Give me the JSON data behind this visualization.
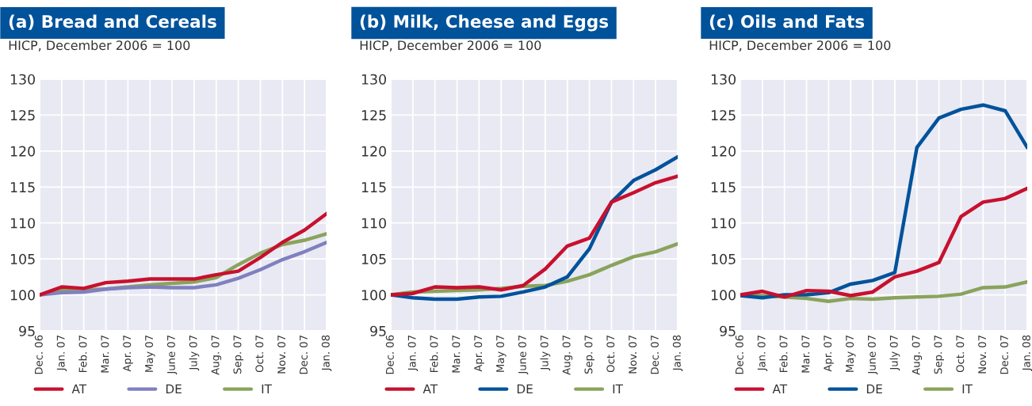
{
  "chart_data": [
    {
      "type": "line",
      "title": "(a) Bread and Cereals",
      "subtitle": "HICP, December 2006 = 100",
      "categories": [
        "Dec. 06",
        "Jan. 07",
        "Feb. 07",
        "Mar. 07",
        "Apr. 07",
        "May 07",
        "June 07",
        "July 07",
        "Aug. 07",
        "Sep. 07",
        "Oct. 07",
        "Nov. 07",
        "Dec. 07",
        "Jan. 08"
      ],
      "series": [
        {
          "name": "AT",
          "color": "#c8102e",
          "values": [
            100,
            101.1,
            100.9,
            101.7,
            101.9,
            102.2,
            102.2,
            102.2,
            102.8,
            103.3,
            105.2,
            107.3,
            109.0,
            111.3
          ]
        },
        {
          "name": "DE",
          "color": "#8080c0",
          "values": [
            100,
            100.3,
            100.4,
            100.8,
            101.0,
            101.1,
            101.0,
            101.0,
            101.4,
            102.3,
            103.5,
            104.9,
            106.0,
            107.3
          ]
        },
        {
          "name": "IT",
          "color": "#8aa35c",
          "values": [
            100,
            100.6,
            100.7,
            100.8,
            101.1,
            101.4,
            101.6,
            101.8,
            102.4,
            104.2,
            105.8,
            107.0,
            107.6,
            108.5
          ]
        }
      ],
      "ylim": [
        95,
        130
      ],
      "yticks": [
        95,
        100,
        105,
        110,
        115,
        120,
        125,
        130
      ],
      "grid": true,
      "legend": "bottom"
    },
    {
      "type": "line",
      "title": "(b) Milk, Cheese and Eggs",
      "subtitle": "HICP, December 2006 = 100",
      "categories": [
        "Dec. 06",
        "Jan. 07",
        "Feb. 07",
        "Mar. 07",
        "Apr. 07",
        "May 07",
        "June 07",
        "July 07",
        "Aug. 07",
        "Sep. 07",
        "Oct. 07",
        "Nov. 07",
        "Dec. 07",
        "Jan. 08"
      ],
      "series": [
        {
          "name": "AT",
          "color": "#c8102e",
          "values": [
            100,
            100.2,
            101.1,
            101.0,
            101.1,
            100.7,
            101.3,
            103.6,
            106.8,
            107.9,
            112.9,
            114.2,
            115.6,
            116.5
          ]
        },
        {
          "name": "DE",
          "color": "#00529b",
          "values": [
            100,
            99.6,
            99.4,
            99.4,
            99.7,
            99.8,
            100.4,
            101.1,
            102.5,
            106.4,
            112.9,
            115.9,
            117.4,
            119.2
          ]
        },
        {
          "name": "IT",
          "color": "#8aa35c",
          "values": [
            100,
            100.4,
            100.5,
            100.6,
            100.7,
            100.9,
            101.2,
            101.3,
            101.9,
            102.8,
            104.1,
            105.3,
            106.0,
            107.1
          ]
        }
      ],
      "ylim": [
        95,
        130
      ],
      "yticks": [
        95,
        100,
        105,
        110,
        115,
        120,
        125,
        130
      ],
      "grid": true,
      "legend": "bottom"
    },
    {
      "type": "line",
      "title": "(c) Oils and Fats",
      "subtitle": "HICP, December 2006 = 100",
      "categories": [
        "Dec. 06",
        "Jan. 07",
        "Feb. 07",
        "Mar. 07",
        "Apr. 07",
        "May 07",
        "June 07",
        "July 07",
        "Aug. 07",
        "Sep. 07",
        "Oct. 07",
        "Nov. 07",
        "Dec. 07",
        "Jan. 08"
      ],
      "series": [
        {
          "name": "AT",
          "color": "#c8102e",
          "values": [
            100,
            100.5,
            99.7,
            100.6,
            100.5,
            99.9,
            100.4,
            102.5,
            103.3,
            104.5,
            110.9,
            112.9,
            113.4,
            114.8
          ]
        },
        {
          "name": "DE",
          "color": "#00529b",
          "values": [
            99.9,
            99.6,
            100,
            100,
            100.3,
            101.5,
            102.0,
            103.1,
            120.5,
            124.6,
            125.8,
            126.4,
            125.6,
            120.5
          ]
        },
        {
          "name": "IT",
          "color": "#8aa35c",
          "values": [
            100,
            99.9,
            99.7,
            99.5,
            99.1,
            99.5,
            99.4,
            99.6,
            99.7,
            99.8,
            100.1,
            101.0,
            101.1,
            101.8
          ]
        }
      ],
      "ylim": [
        95,
        130
      ],
      "yticks": [
        95,
        100,
        105,
        110,
        115,
        120,
        125,
        130
      ],
      "grid": true,
      "legend": "bottom"
    }
  ]
}
